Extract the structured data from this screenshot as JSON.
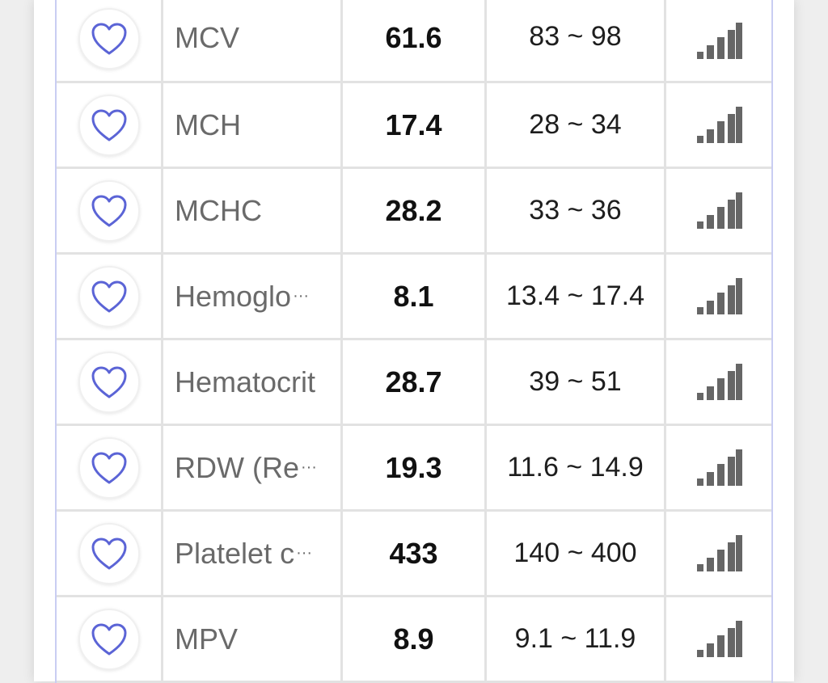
{
  "colors": {
    "accent": "#5b64d6",
    "signal": "#666666"
  },
  "rows": [
    {
      "name": "MCV",
      "truncated": false,
      "value": "61.6",
      "range": "83 ~ 98",
      "favorite_icon": "heart-outline-icon",
      "signal_icon": "signal-bars-icon"
    },
    {
      "name": "MCH",
      "truncated": false,
      "value": "17.4",
      "range": "28 ~ 34",
      "favorite_icon": "heart-outline-icon",
      "signal_icon": "signal-bars-icon"
    },
    {
      "name": "MCHC",
      "truncated": false,
      "value": "28.2",
      "range": "33 ~ 36",
      "favorite_icon": "heart-outline-icon",
      "signal_icon": "signal-bars-icon"
    },
    {
      "name": "Hemoglo",
      "truncated": true,
      "value": "8.1",
      "range": "13.4 ~ 17.4",
      "favorite_icon": "heart-outline-icon",
      "signal_icon": "signal-bars-icon"
    },
    {
      "name": "Hematocrit",
      "truncated": false,
      "value": "28.7",
      "range": "39 ~ 51",
      "favorite_icon": "heart-outline-icon",
      "signal_icon": "signal-bars-icon"
    },
    {
      "name": "RDW (Re",
      "truncated": true,
      "value": "19.3",
      "range": "11.6 ~ 14.9",
      "favorite_icon": "heart-outline-icon",
      "signal_icon": "signal-bars-icon"
    },
    {
      "name": "Platelet c",
      "truncated": true,
      "value": "433",
      "range": "140 ~ 400",
      "favorite_icon": "heart-outline-icon",
      "signal_icon": "signal-bars-icon"
    },
    {
      "name": "MPV",
      "truncated": false,
      "value": "8.9",
      "range": "9.1 ~ 11.9",
      "favorite_icon": "heart-outline-icon",
      "signal_icon": "signal-bars-icon"
    }
  ],
  "ellipsis": "···"
}
